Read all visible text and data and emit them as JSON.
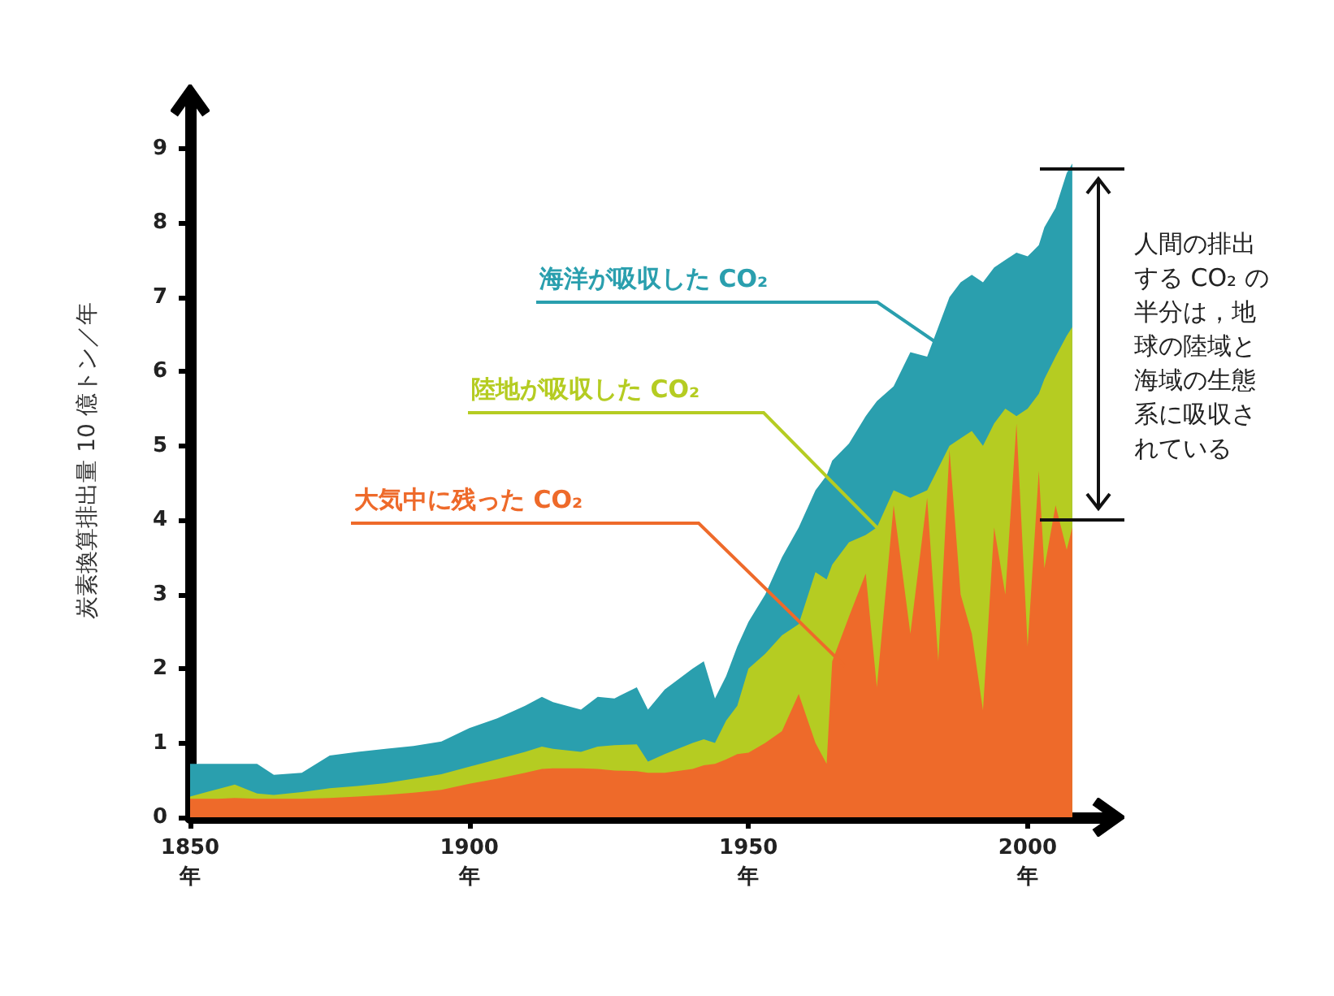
{
  "chart_data": {
    "type": "area",
    "stacked": true,
    "ylabel": "炭素換算排出量 10 億トン／年",
    "x": [
      1850,
      1855,
      1858,
      1862,
      1865,
      1870,
      1875,
      1880,
      1885,
      1890,
      1895,
      1900,
      1905,
      1910,
      1913,
      1915,
      1920,
      1923,
      1926,
      1930,
      1932,
      1935,
      1940,
      1942,
      1944,
      1946,
      1948,
      1950,
      1953,
      1956,
      1959,
      1962,
      1964,
      1965,
      1968,
      1971,
      1973,
      1976,
      1979,
      1982,
      1984,
      1986,
      1988,
      1990,
      1992,
      1994,
      1996,
      1998,
      2000,
      2002,
      2003,
      2005,
      2007,
      2008
    ],
    "series": [
      {
        "name": "大気中に残った CO₂",
        "color": "#ee6a2a",
        "values": [
          0.25,
          0.25,
          0.26,
          0.25,
          0.25,
          0.25,
          0.26,
          0.28,
          0.3,
          0.33,
          0.37,
          0.45,
          0.52,
          0.6,
          0.65,
          0.66,
          0.66,
          0.65,
          0.63,
          0.62,
          0.6,
          0.6,
          0.65,
          0.7,
          0.72,
          0.78,
          0.85,
          0.87,
          1.0,
          1.16,
          1.66,
          1.0,
          0.72,
          2.1,
          2.7,
          3.28,
          1.75,
          4.2,
          2.47,
          4.3,
          2.1,
          4.95,
          3.0,
          2.47,
          1.44,
          3.9,
          3.0,
          5.3,
          2.3,
          4.66,
          3.35,
          4.2,
          3.6,
          3.9
        ]
      },
      {
        "name": "陸地が吸収した CO₂",
        "color": "#b5cc22",
        "values": [
          0.03,
          0.13,
          0.18,
          0.07,
          0.05,
          0.09,
          0.13,
          0.14,
          0.16,
          0.19,
          0.21,
          0.23,
          0.26,
          0.28,
          0.3,
          0.26,
          0.22,
          0.3,
          0.34,
          0.36,
          0.15,
          0.25,
          0.35,
          0.35,
          0.28,
          0.52,
          0.65,
          1.13,
          1.2,
          1.29,
          0.94,
          2.3,
          2.48,
          1.3,
          1.0,
          0.52,
          2.15,
          0.2,
          1.83,
          0.1,
          2.6,
          0.05,
          2.1,
          2.73,
          3.56,
          1.4,
          2.5,
          0.1,
          3.2,
          1.04,
          2.55,
          2.0,
          2.88,
          2.7
        ]
      },
      {
        "name": "海洋が吸収した CO₂",
        "color": "#2a9fae",
        "values": [
          0.44,
          0.34,
          0.28,
          0.4,
          0.27,
          0.26,
          0.44,
          0.46,
          0.46,
          0.44,
          0.44,
          0.52,
          0.55,
          0.62,
          0.67,
          0.63,
          0.57,
          0.67,
          0.63,
          0.77,
          0.7,
          0.87,
          1.0,
          1.05,
          0.6,
          0.6,
          0.8,
          0.63,
          0.8,
          1.05,
          1.3,
          1.1,
          1.4,
          1.4,
          1.33,
          1.6,
          1.7,
          1.4,
          1.96,
          1.8,
          1.9,
          2.0,
          2.1,
          2.1,
          2.2,
          2.1,
          2.0,
          2.2,
          2.05,
          2.0,
          2.04,
          2.0,
          2.19,
          2.2
        ]
      }
    ],
    "xlim": [
      1850,
      2015
    ],
    "xticks": [
      {
        "value": 1850,
        "label": "1850\n年"
      },
      {
        "value": 1900,
        "label": "1900\n年"
      },
      {
        "value": 1950,
        "label": "1950\n年"
      },
      {
        "value": 2000,
        "label": "2000\n年"
      }
    ],
    "ylim": [
      0,
      9.6
    ],
    "yticks": [
      0,
      1,
      2,
      3,
      4,
      5,
      6,
      7,
      8,
      9
    ],
    "annotations": [
      "人間の排出する CO₂ の半分は，地球の陸域と海域の生態系に吸収されている"
    ],
    "grid": false,
    "legend": false
  }
}
